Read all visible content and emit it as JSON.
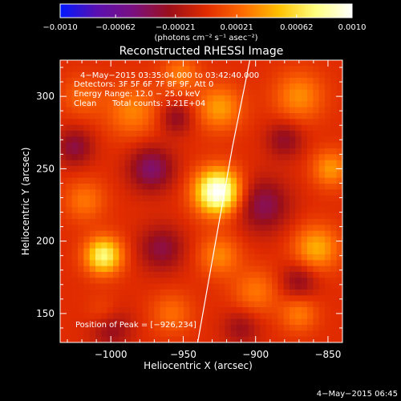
{
  "chart_data": {
    "type": "heatmap",
    "title": "Reconstructed RHESSI Image",
    "xlabel": "Heliocentric X (arcsec)",
    "ylabel": "Heliocentric Y (arcsec)",
    "xlim": [
      -1035,
      -840
    ],
    "ylim": [
      130,
      325
    ],
    "x_ticks": [
      -1000,
      -950,
      -900,
      -850
    ],
    "x_tick_labels": [
      "−1000",
      "−950",
      "−900",
      "−850"
    ],
    "y_ticks": [
      150,
      200,
      250,
      300
    ],
    "y_tick_labels": [
      "150",
      "200",
      "250",
      "300"
    ],
    "colorbar": {
      "range": [
        -0.001,
        0.001
      ],
      "ticks": [
        -0.001,
        -0.00062,
        -0.00021,
        0.00021,
        0.00062,
        0.001
      ],
      "tick_labels": [
        "−0.0010",
        "−0.00062",
        "−0.00021",
        "0.00021",
        "0.00062",
        "0.0010"
      ],
      "unit_label": "(photons cm⁻² s⁻¹ asec⁻²)",
      "colors": [
        "#0018ff",
        "#5a10b0",
        "#7a1080",
        "#9b0f1a",
        "#e02b00",
        "#ff6a00",
        "#ffc000",
        "#ffff80",
        "#ffffff"
      ]
    },
    "annotations": {
      "time_range": "4−May−2015 03:35:04.000 to 03:42:40.000",
      "detectors": "Detectors: 3F 5F 6F 7F 8F 9F, Att 0",
      "energy_range": "Energy Range: 12.0 − 25.0 keV",
      "clean_label": "Clean",
      "total_counts": "Total counts: 3.21E+04",
      "peak_position": "Position of Peak = [−926,234]"
    },
    "sources": [
      {
        "x": -926,
        "y": 234,
        "amplitude": 0.00105,
        "sigma": 11
      },
      {
        "x": -1005,
        "y": 190,
        "amplitude": 0.00075,
        "sigma": 9
      },
      {
        "x": -1018,
        "y": 228,
        "amplitude": 0.00028,
        "sigma": 10
      },
      {
        "x": -985,
        "y": 290,
        "amplitude": 0.00032,
        "sigma": 13
      },
      {
        "x": -1020,
        "y": 300,
        "amplitude": 0.00022,
        "sigma": 10
      },
      {
        "x": -925,
        "y": 292,
        "amplitude": 0.0004,
        "sigma": 11
      },
      {
        "x": -952,
        "y": 315,
        "amplitude": 0.0003,
        "sigma": 9
      },
      {
        "x": -870,
        "y": 300,
        "amplitude": 0.00035,
        "sigma": 12
      },
      {
        "x": -848,
        "y": 250,
        "amplitude": 0.00038,
        "sigma": 9
      },
      {
        "x": -858,
        "y": 195,
        "amplitude": 0.00045,
        "sigma": 11
      },
      {
        "x": -925,
        "y": 190,
        "amplitude": 0.00033,
        "sigma": 10
      },
      {
        "x": -900,
        "y": 165,
        "amplitude": 0.00028,
        "sigma": 11
      },
      {
        "x": -958,
        "y": 150,
        "amplitude": 0.00025,
        "sigma": 10
      },
      {
        "x": -870,
        "y": 150,
        "amplitude": 0.0003,
        "sigma": 9
      },
      {
        "x": -1005,
        "y": 150,
        "amplitude": 0.00018,
        "sigma": 8
      },
      {
        "x": -972,
        "y": 250,
        "amplitude": -0.00045,
        "sigma": 11
      },
      {
        "x": -895,
        "y": 225,
        "amplitude": -0.0004,
        "sigma": 13
      },
      {
        "x": -1025,
        "y": 265,
        "amplitude": -0.00035,
        "sigma": 9
      },
      {
        "x": -965,
        "y": 195,
        "amplitude": -0.00035,
        "sigma": 11
      },
      {
        "x": -955,
        "y": 285,
        "amplitude": -0.0003,
        "sigma": 8
      },
      {
        "x": -870,
        "y": 172,
        "amplitude": -0.0003,
        "sigma": 9
      },
      {
        "x": -1000,
        "y": 140,
        "amplitude": -0.0003,
        "sigma": 10
      },
      {
        "x": -910,
        "y": 140,
        "amplitude": -0.00025,
        "sigma": 9
      },
      {
        "x": -880,
        "y": 270,
        "amplitude": -0.0003,
        "sigma": 9
      }
    ],
    "limb_curve": [
      [
        -940,
        130
      ],
      [
        -932,
        175
      ],
      [
        -924,
        220
      ],
      [
        -916,
        265
      ],
      [
        -907,
        310
      ],
      [
        -904,
        325
      ]
    ]
  },
  "footer": {
    "timestamp": "4−May−2015 06:45"
  }
}
